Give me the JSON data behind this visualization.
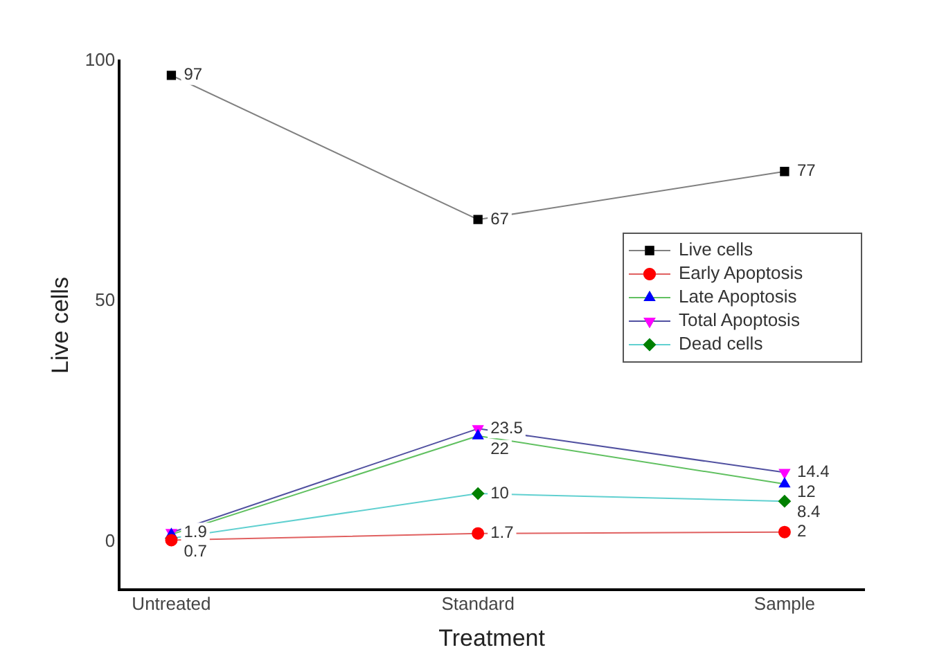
{
  "chart_data": {
    "type": "line",
    "xlabel": "Treatment",
    "ylabel": "Live cells",
    "categories": [
      "Untreated",
      "Standard",
      "Sample"
    ],
    "ylim": [
      -10,
      100
    ],
    "yticks": [
      0,
      50,
      100
    ],
    "grid": false,
    "legend": "right",
    "line_style": "solid",
    "series": [
      {
        "name": "Live cells",
        "color": "#808080",
        "colors": [
          "#000000",
          "#000000",
          "#000000"
        ],
        "marker": "square",
        "values": [
          97,
          67,
          77
        ],
        "value_labels": [
          "97",
          "67",
          "77"
        ]
      },
      {
        "name": "Early Apoptosis",
        "color": "#e06060",
        "colors": [
          "#ff0000",
          "#ff0000",
          "#ff0000"
        ],
        "marker": "circle",
        "values": [
          0.3,
          1.7,
          2
        ],
        "value_labels": [
          null,
          "1.7",
          "2"
        ]
      },
      {
        "name": "Late Apoptosis",
        "color": "#60c060",
        "colors": [
          "#0000ff",
          "#0000ff",
          "#0000ff"
        ],
        "marker": "triangle",
        "values": [
          1.5,
          22,
          12
        ],
        "value_labels": [
          null,
          "22",
          "12"
        ]
      },
      {
        "name": "Total Apoptosis",
        "color": "#5050a0",
        "colors": [
          "#ff00ff",
          "#ff00ff",
          "#ff00ff"
        ],
        "marker": "triangle-down",
        "values": [
          1.9,
          23.5,
          14.4
        ],
        "value_labels": [
          "1.9",
          "23.5",
          "14.4"
        ]
      },
      {
        "name": "Dead cells",
        "color": "#60d0d0",
        "colors": [
          "#008000",
          "#008000",
          "#008000"
        ],
        "marker": "diamond",
        "values": [
          0.7,
          10,
          8.4
        ],
        "value_labels": [
          "0.7",
          "10",
          "8.4"
        ]
      }
    ]
  }
}
